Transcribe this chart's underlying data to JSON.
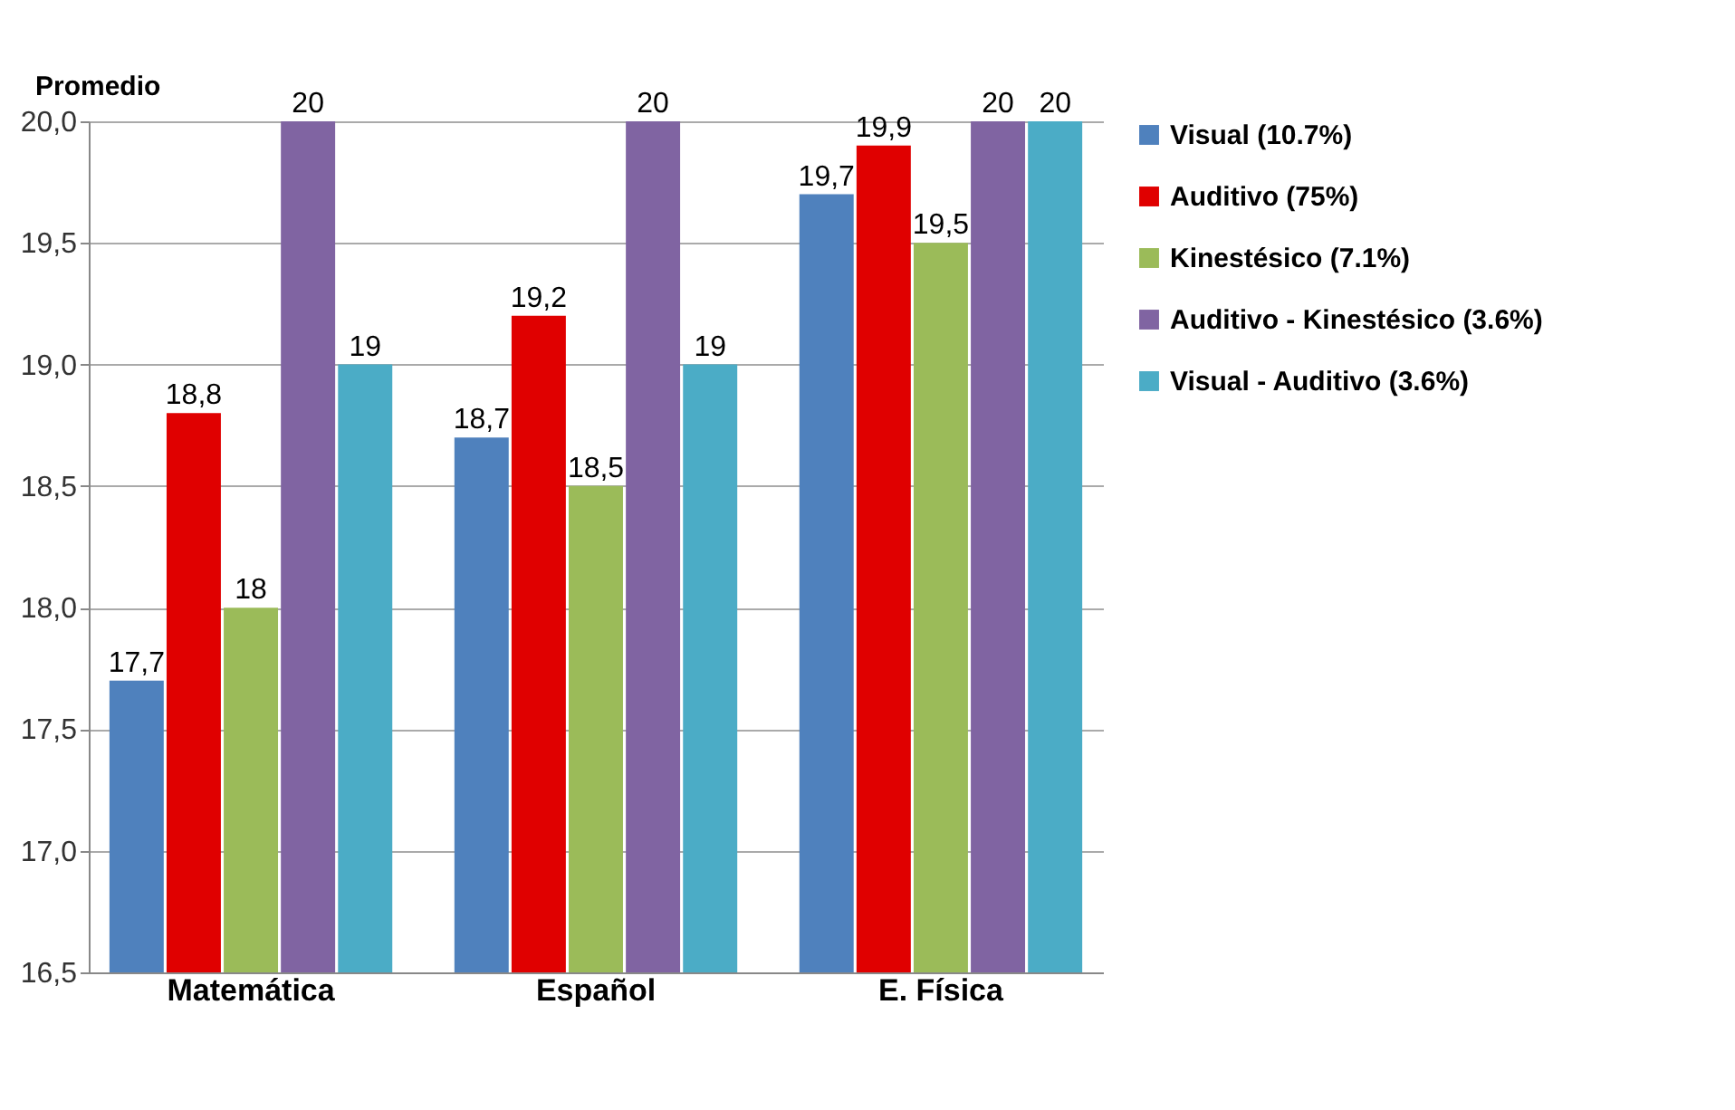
{
  "chart_data": {
    "type": "bar",
    "ylabel": "Promedio",
    "categories": [
      "Matemática",
      "Español",
      "E. Física"
    ],
    "series": [
      {
        "name": "Visual (10.7%)",
        "color": "#4f81bd",
        "values": [
          17.7,
          18.7,
          19.7
        ],
        "value_labels": [
          "17,7",
          "18,7",
          "19,7"
        ]
      },
      {
        "name": "Auditivo (75%)",
        "color": "#e00000",
        "values": [
          18.8,
          19.2,
          19.9
        ],
        "value_labels": [
          "18,8",
          "19,2",
          "19,9"
        ]
      },
      {
        "name": "Kinestésico (7.1%)",
        "color": "#9bbb59",
        "values": [
          18,
          18.5,
          19.5
        ],
        "value_labels": [
          "18",
          "18,5",
          "19,5"
        ]
      },
      {
        "name": "Auditivo - Kinestésico (3.6%)",
        "color": "#8064a2",
        "values": [
          20,
          20,
          20
        ],
        "value_labels": [
          "20",
          "20",
          "20"
        ]
      },
      {
        "name": "Visual - Auditivo (3.6%)",
        "color": "#4bacc6",
        "values": [
          19,
          19,
          20
        ],
        "value_labels": [
          "19",
          "19",
          "20"
        ]
      }
    ],
    "ylim": [
      16.5,
      20
    ],
    "yticks": [
      {
        "value": 16.5,
        "label": "16,5"
      },
      {
        "value": 17,
        "label": "17,0"
      },
      {
        "value": 17.5,
        "label": "17,5"
      },
      {
        "value": 18,
        "label": "18,0"
      },
      {
        "value": 18.5,
        "label": "18,5"
      },
      {
        "value": 19,
        "label": "19,0"
      },
      {
        "value": 19.5,
        "label": "19,5"
      },
      {
        "value": 20,
        "label": "20,0"
      }
    ],
    "grid": "y",
    "legend": "right"
  }
}
